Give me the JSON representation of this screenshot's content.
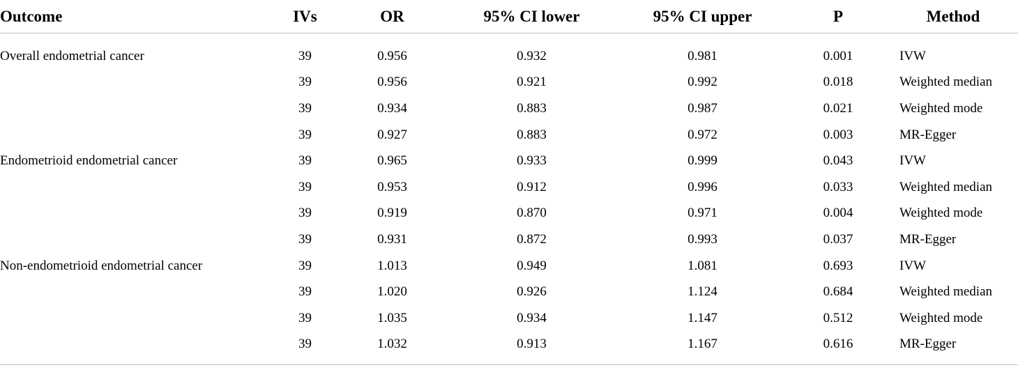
{
  "table": {
    "headers": {
      "outcome": "Outcome",
      "ivs": "IVs",
      "or": "OR",
      "ci_lower": "95% CI lower",
      "ci_upper": "95% CI upper",
      "p": "P",
      "method": "Method"
    },
    "rows": [
      {
        "outcome": "Overall endometrial cancer",
        "ivs": "39",
        "or": "0.956",
        "ci_lower": "0.932",
        "ci_upper": "0.981",
        "p": "0.001",
        "method": "IVW"
      },
      {
        "outcome": "",
        "ivs": "39",
        "or": "0.956",
        "ci_lower": "0.921",
        "ci_upper": "0.992",
        "p": "0.018",
        "method": "Weighted median"
      },
      {
        "outcome": "",
        "ivs": "39",
        "or": "0.934",
        "ci_lower": "0.883",
        "ci_upper": "0.987",
        "p": "0.021",
        "method": "Weighted mode"
      },
      {
        "outcome": "",
        "ivs": "39",
        "or": "0.927",
        "ci_lower": "0.883",
        "ci_upper": "0.972",
        "p": "0.003",
        "method": "MR-Egger"
      },
      {
        "outcome": "Endometrioid endometrial cancer",
        "ivs": "39",
        "or": "0.965",
        "ci_lower": "0.933",
        "ci_upper": "0.999",
        "p": "0.043",
        "method": "IVW"
      },
      {
        "outcome": "",
        "ivs": "39",
        "or": "0.953",
        "ci_lower": "0.912",
        "ci_upper": "0.996",
        "p": "0.033",
        "method": "Weighted median"
      },
      {
        "outcome": "",
        "ivs": "39",
        "or": "0.919",
        "ci_lower": "0.870",
        "ci_upper": "0.971",
        "p": "0.004",
        "method": "Weighted mode"
      },
      {
        "outcome": "",
        "ivs": "39",
        "or": "0.931",
        "ci_lower": "0.872",
        "ci_upper": "0.993",
        "p": "0.037",
        "method": "MR-Egger"
      },
      {
        "outcome": "Non-endometrioid endometrial cancer",
        "ivs": "39",
        "or": "1.013",
        "ci_lower": "0.949",
        "ci_upper": "1.081",
        "p": "0.693",
        "method": "IVW"
      },
      {
        "outcome": "",
        "ivs": "39",
        "or": "1.020",
        "ci_lower": "0.926",
        "ci_upper": "1.124",
        "p": "0.684",
        "method": "Weighted median"
      },
      {
        "outcome": "",
        "ivs": "39",
        "or": "1.035",
        "ci_lower": "0.934",
        "ci_upper": "1.147",
        "p": "0.512",
        "method": "Weighted mode"
      },
      {
        "outcome": "",
        "ivs": "39",
        "or": "1.032",
        "ci_lower": "0.913",
        "ci_upper": "1.167",
        "p": "0.616",
        "method": "MR-Egger"
      }
    ]
  }
}
